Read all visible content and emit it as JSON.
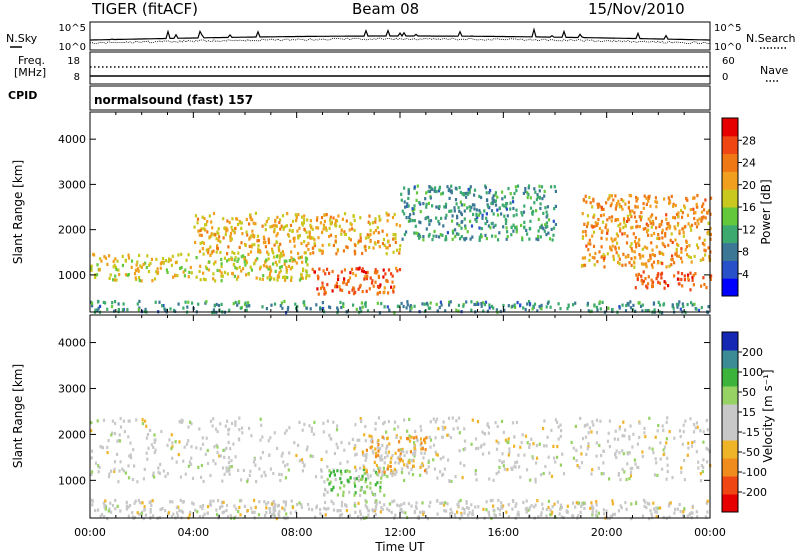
{
  "header": {
    "radar": "TIGER (fitACF)",
    "beam": "Beam 08",
    "date": "15/Nov/2010"
  },
  "strips": {
    "nsky_label": "N.Sky",
    "nsearch_label": "N.Search",
    "nsky_ticks": [
      "10^5",
      "10^0"
    ],
    "nsearch_ticks": [
      "10^5",
      "10^0"
    ],
    "freq_label": "Freq.",
    "freq_unit": "[MHz]",
    "freq_ticks": [
      "18",
      "8"
    ],
    "nave_label": "Nave",
    "nave_ticks": [
      "60",
      "0"
    ],
    "cpid_label": "CPID",
    "cpid_text": "normalsound (fast) 157"
  },
  "chart_data": [
    {
      "type": "heatmap",
      "title": "",
      "xlabel": "Time UT",
      "ylabel": "Slant Range [km]",
      "x_ticks": [
        "00:00",
        "04:00",
        "08:00",
        "12:00",
        "16:00",
        "20:00",
        "00:00"
      ],
      "xlim_hours": [
        0,
        24
      ],
      "y_ticks": [
        "1000",
        "2000",
        "3000",
        "4000"
      ],
      "ylim": [
        180,
        4600
      ],
      "colorbar": {
        "label": "Power [dB]",
        "ticks": [
          "4",
          "8",
          "12",
          "16",
          "20",
          "24",
          "28"
        ],
        "range": [
          0,
          32
        ],
        "colors": [
          "#0000ff",
          "#2850c8",
          "#3c7896",
          "#3caa6e",
          "#64c83c",
          "#c8c81e",
          "#f0a01e",
          "#f07814",
          "#f04614",
          "#e60000"
        ]
      },
      "regions": [
        {
          "name": "ground scatter band",
          "x": [
            0,
            24
          ],
          "y": [
            200,
            450
          ],
          "value": 10
        },
        {
          "name": "night echo layer",
          "x": [
            0,
            8.5
          ],
          "y": [
            900,
            1500
          ],
          "value": 18
        },
        {
          "name": "midday strong echo",
          "x": [
            8.5,
            12
          ],
          "y": [
            600,
            1200
          ],
          "value": 26
        },
        {
          "name": "oblique band A",
          "x": [
            4,
            12
          ],
          "y": [
            1500,
            2400
          ],
          "value": 20
        },
        {
          "name": "oblique band B",
          "x": [
            12,
            18
          ],
          "y": [
            1800,
            3000
          ],
          "value": 10
        },
        {
          "name": "evening band",
          "x": [
            19,
            24
          ],
          "y": [
            1200,
            2800
          ],
          "value": 22
        },
        {
          "name": "late echo",
          "x": [
            21,
            24
          ],
          "y": [
            700,
            1100
          ],
          "value": 26
        }
      ]
    },
    {
      "type": "heatmap",
      "title": "",
      "xlabel": "Time UT",
      "ylabel": "Slant Range [km]",
      "x_ticks": [
        "00:00",
        "04:00",
        "08:00",
        "12:00",
        "16:00",
        "20:00",
        "00:00"
      ],
      "xlim_hours": [
        0,
        24
      ],
      "y_ticks": [
        "1000",
        "2000",
        "3000",
        "4000"
      ],
      "ylim": [
        180,
        4600
      ],
      "colorbar": {
        "label": "Velocity [m s⁻¹]",
        "ticks": [
          "200",
          "100",
          "50",
          "15",
          "-15",
          "-50",
          "-100",
          "-200"
        ],
        "range": [
          -250,
          250
        ],
        "colors": [
          "#e60000",
          "#f04614",
          "#f08c1e",
          "#f0b428",
          "#c8c8c8",
          "#c8c8c8",
          "#96d264",
          "#3cb43c",
          "#3c8c96",
          "#1428b4"
        ]
      },
      "regions": [
        {
          "name": "ground scatter",
          "x": [
            0,
            24
          ],
          "y": [
            200,
            600
          ],
          "value": 0
        },
        {
          "name": "grey echo layer",
          "x": [
            0,
            24
          ],
          "y": [
            1000,
            2400
          ],
          "value": 0
        },
        {
          "name": "midday positive",
          "x": [
            9,
            11.5
          ],
          "y": [
            700,
            1300
          ],
          "value": 80
        },
        {
          "name": "midday negative",
          "x": [
            10.5,
            13
          ],
          "y": [
            1200,
            2000
          ],
          "value": -80
        }
      ]
    }
  ],
  "colors": {
    "line": "#000000",
    "background": "#ffffff"
  }
}
